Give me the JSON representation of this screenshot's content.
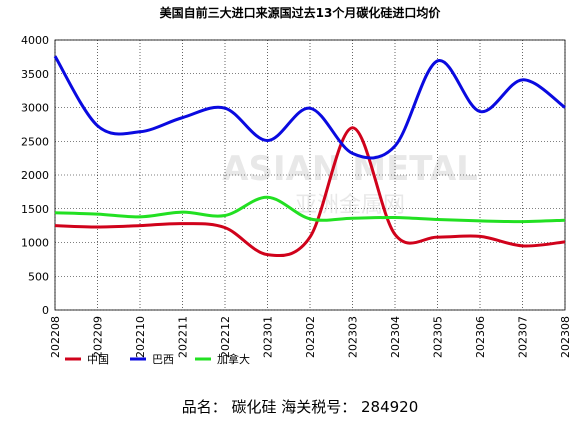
{
  "chart_data": {
    "type": "line",
    "title": "美国自前三大进口来源国过去13个月碳化硅进口均价",
    "categories": [
      "202208",
      "202209",
      "202210",
      "202211",
      "202212",
      "202301",
      "202302",
      "202303",
      "202304",
      "202305",
      "202306",
      "202307",
      "202308"
    ],
    "series": [
      {
        "name": "中国",
        "color": "#d0021b",
        "values": [
          1250,
          1230,
          1250,
          1280,
          1220,
          820,
          1080,
          2700,
          1120,
          1080,
          1090,
          950,
          1010
        ]
      },
      {
        "name": "巴西",
        "color": "#0a0ae0",
        "values": [
          3760,
          2730,
          2640,
          2850,
          2990,
          2510,
          2990,
          2320,
          2430,
          3690,
          2940,
          3410,
          3000
        ]
      },
      {
        "name": "加拿大",
        "color": "#22e022",
        "values": [
          1440,
          1420,
          1380,
          1450,
          1400,
          1670,
          1350,
          1360,
          1370,
          1340,
          1320,
          1310,
          1330
        ]
      }
    ],
    "ylim": [
      0,
      4000
    ],
    "yticks": [
      0,
      500,
      1000,
      1500,
      2000,
      2500,
      3000,
      3500,
      4000
    ],
    "grid": true,
    "watermark": [
      "ASIAN METAL",
      "亚洲金属网"
    ],
    "footer": "品名：  碳化硅    海关税号：  284920"
  }
}
